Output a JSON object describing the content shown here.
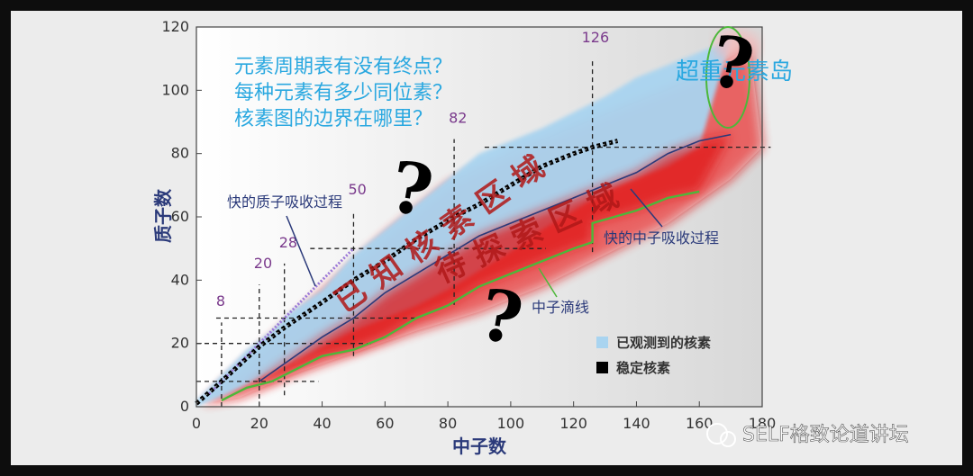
{
  "chart_data": {
    "type": "scatter",
    "xlabel": "中子数",
    "ylabel": "质子数",
    "xlim": [
      0,
      180
    ],
    "ylim": [
      0,
      120
    ],
    "x_ticks": [
      0,
      20,
      40,
      60,
      80,
      100,
      120,
      140,
      160,
      180
    ],
    "y_ticks": [
      0,
      20,
      40,
      60,
      80,
      100,
      120
    ],
    "x_tick_labels": [
      "0",
      "20",
      "40",
      "60",
      "80",
      "100",
      "120",
      "140",
      "160",
      "180"
    ],
    "y_tick_labels": [
      "0",
      "20",
      "40",
      "60",
      "80",
      "100",
      "120"
    ],
    "magic_numbers": [
      {
        "label": "8",
        "value": 8
      },
      {
        "label": "20",
        "value": 20
      },
      {
        "label": "28",
        "value": 28
      },
      {
        "label": "50",
        "value": 50
      },
      {
        "label": "82",
        "value": 82
      },
      {
        "label": "126",
        "value": 126
      }
    ],
    "stable_valley": [
      [
        0,
        1
      ],
      [
        8,
        8
      ],
      [
        20,
        19
      ],
      [
        28,
        25
      ],
      [
        40,
        33
      ],
      [
        50,
        40
      ],
      [
        60,
        46
      ],
      [
        70,
        53
      ],
      [
        82,
        60
      ],
      [
        90,
        64
      ],
      [
        100,
        70
      ],
      [
        110,
        76
      ],
      [
        120,
        80
      ],
      [
        126,
        82
      ],
      [
        134,
        84
      ]
    ],
    "observed_upper": [
      [
        0,
        2
      ],
      [
        8,
        10
      ],
      [
        16,
        18
      ],
      [
        24,
        24
      ],
      [
        30,
        30
      ],
      [
        40,
        37
      ],
      [
        50,
        48
      ],
      [
        60,
        56
      ],
      [
        70,
        64
      ],
      [
        80,
        72
      ],
      [
        90,
        80
      ],
      [
        100,
        84
      ],
      [
        110,
        88
      ],
      [
        120,
        93
      ],
      [
        130,
        98
      ],
      [
        140,
        104
      ],
      [
        150,
        108
      ],
      [
        160,
        112
      ],
      [
        170,
        116
      ]
    ],
    "observed_lower": [
      [
        0,
        0
      ],
      [
        10,
        4
      ],
      [
        20,
        9
      ],
      [
        30,
        14
      ],
      [
        40,
        19
      ],
      [
        50,
        24
      ],
      [
        60,
        28
      ],
      [
        70,
        32
      ],
      [
        80,
        37
      ],
      [
        90,
        43
      ],
      [
        100,
        49
      ],
      [
        110,
        56
      ],
      [
        120,
        62
      ],
      [
        130,
        68
      ],
      [
        140,
        72
      ],
      [
        150,
        76
      ],
      [
        160,
        82
      ]
    ],
    "unknown_upper": [
      [
        2,
        1
      ],
      [
        20,
        18
      ],
      [
        40,
        36
      ],
      [
        60,
        54
      ],
      [
        80,
        70
      ],
      [
        100,
        80
      ],
      [
        120,
        88
      ],
      [
        140,
        96
      ],
      [
        160,
        104
      ],
      [
        170,
        110
      ],
      [
        176,
        114
      ]
    ],
    "unknown_lower": [
      [
        14,
        3
      ],
      [
        30,
        10
      ],
      [
        50,
        17
      ],
      [
        70,
        24
      ],
      [
        90,
        30
      ],
      [
        110,
        38
      ],
      [
        130,
        48
      ],
      [
        150,
        58
      ],
      [
        170,
        72
      ],
      [
        180,
        82
      ]
    ],
    "neutron_drip_line": [
      [
        8,
        2
      ],
      [
        16,
        6
      ],
      [
        24,
        8
      ],
      [
        32,
        12
      ],
      [
        40,
        16
      ],
      [
        50,
        18
      ],
      [
        60,
        22
      ],
      [
        70,
        28
      ],
      [
        80,
        32
      ],
      [
        90,
        38
      ],
      [
        100,
        42
      ],
      [
        110,
        46
      ],
      [
        120,
        50
      ],
      [
        126,
        52
      ],
      [
        126,
        58
      ],
      [
        140,
        62
      ],
      [
        150,
        66
      ],
      [
        160,
        68
      ]
    ],
    "neutron_capture_path": [
      [
        20,
        8
      ],
      [
        40,
        22
      ],
      [
        50,
        28
      ],
      [
        60,
        36
      ],
      [
        70,
        42
      ],
      [
        80,
        48
      ],
      [
        90,
        54
      ],
      [
        100,
        58
      ],
      [
        110,
        62
      ],
      [
        120,
        66
      ],
      [
        130,
        70
      ],
      [
        140,
        74
      ],
      [
        150,
        80
      ],
      [
        160,
        84
      ],
      [
        170,
        86
      ]
    ],
    "proton_capture_path": [
      [
        4,
        4
      ],
      [
        10,
        10
      ],
      [
        20,
        20
      ],
      [
        30,
        30
      ],
      [
        40,
        40
      ],
      [
        50,
        50
      ]
    ],
    "superheavy_island": {
      "x": 172,
      "y": 114
    },
    "annotations": {
      "proton_capture": "快的质子吸收过程",
      "neutron_capture": "快的中子吸收过程",
      "drip_line": "中子滴线",
      "island": "超重元素岛",
      "known_region": "已知核素区域",
      "explore_region": "待探索区域"
    },
    "legend": [
      {
        "label": "已观测到的核素",
        "color": "#a9d4f0"
      },
      {
        "label": "稳定核素",
        "color": "#000000"
      }
    ],
    "questions": [
      "元素周期表有没有终点？",
      "每种元素有多少同位素？",
      "核素图的边界在哪里？"
    ],
    "question_marks": [
      "?",
      "?",
      "?",
      "?"
    ]
  },
  "watermark": "SELF格致论道讲坛",
  "colors": {
    "observed": "#a9d4f0",
    "stable": "#000000",
    "predicted": "#e01818",
    "drip_line": "#4cb83a",
    "paths": "#2b3a7a",
    "magic": "#7a3a8c",
    "question_text": "#2aa8e0"
  }
}
